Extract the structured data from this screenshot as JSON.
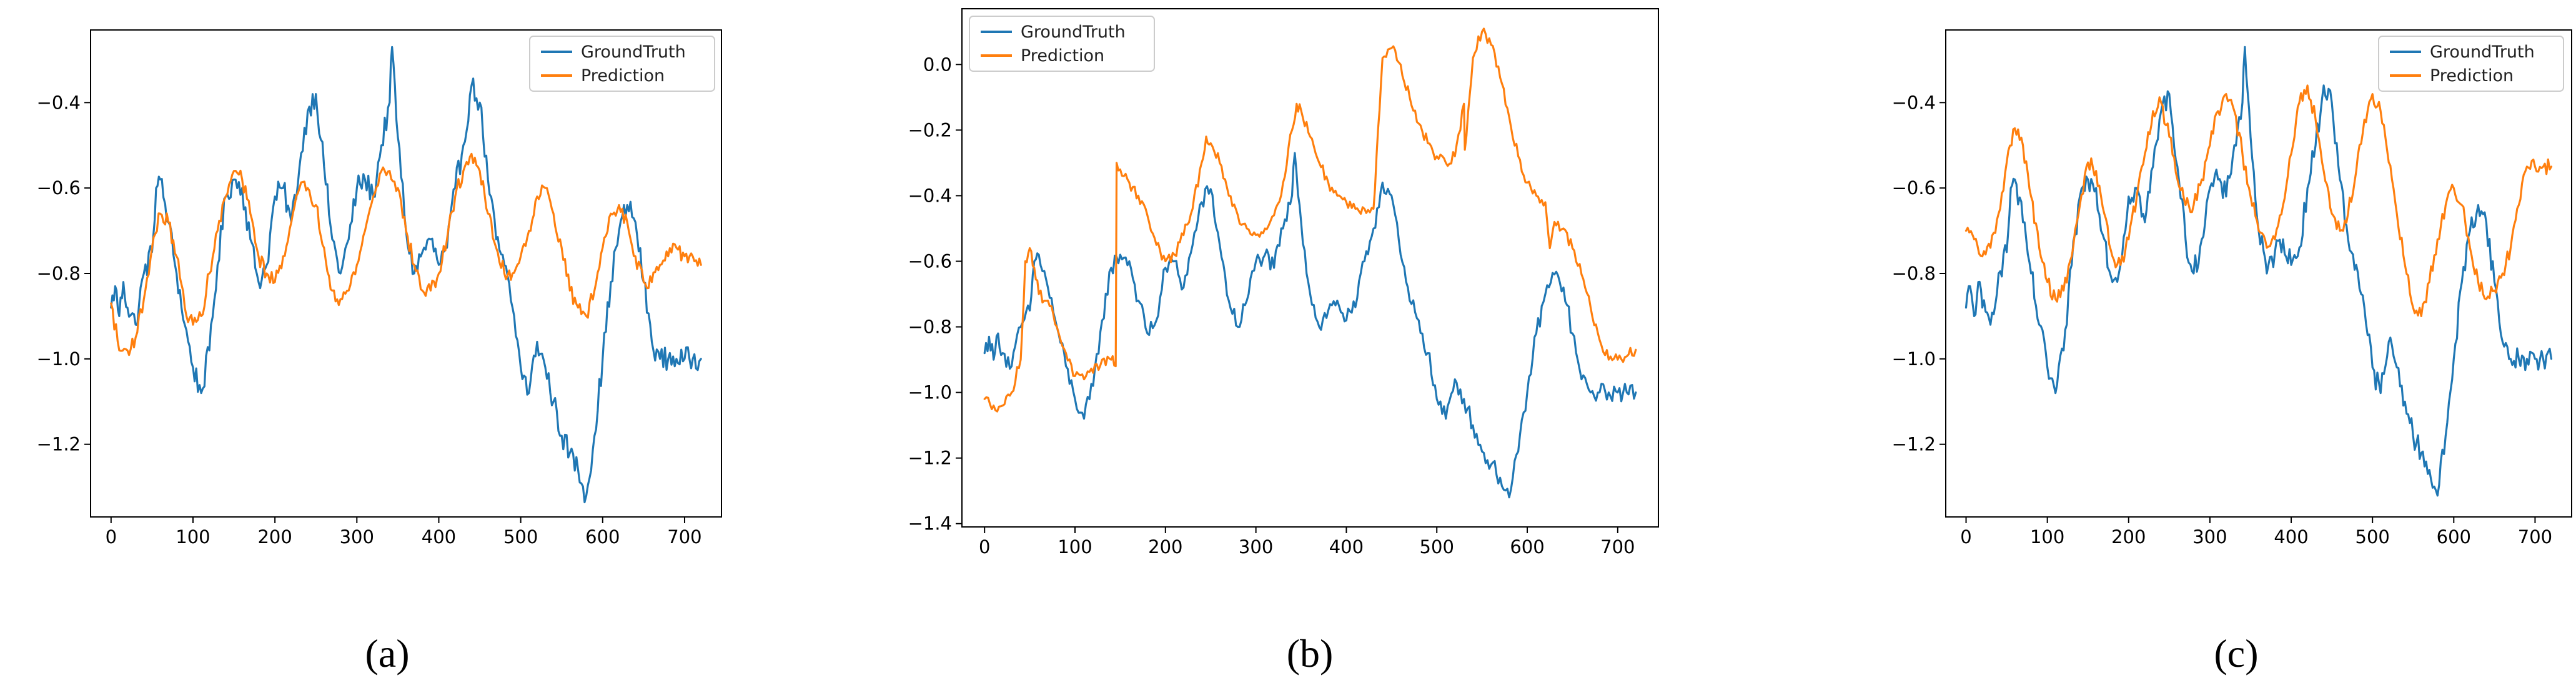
{
  "colors": {
    "ground_truth": "#1f77b4",
    "prediction": "#ff7f0e"
  },
  "captions": [
    "(a)",
    "(b)",
    "(c)"
  ],
  "legend_labels": [
    "GroundTruth",
    "Prediction"
  ],
  "chart_data": [
    {
      "panel": "a",
      "type": "line",
      "legend": "top-right",
      "x_ticks": [
        "0",
        "100",
        "200",
        "300",
        "400",
        "500",
        "600",
        "700"
      ],
      "y_ticks": [
        "-1.2",
        "-1.0",
        "-0.8",
        "-0.6",
        "-0.4"
      ],
      "xlim": [
        -25,
        745
      ],
      "ylim": [
        -1.37,
        -0.23
      ],
      "series": [
        {
          "name": "GroundTruth",
          "x": [
            0,
            5,
            10,
            15,
            20,
            30,
            40,
            50,
            55,
            60,
            70,
            80,
            90,
            100,
            110,
            120,
            130,
            140,
            150,
            160,
            170,
            180,
            190,
            200,
            210,
            220,
            230,
            240,
            250,
            260,
            270,
            280,
            290,
            300,
            310,
            320,
            330,
            340,
            343,
            350,
            360,
            370,
            380,
            390,
            400,
            410,
            420,
            430,
            440,
            450,
            460,
            470,
            480,
            490,
            500,
            510,
            520,
            530,
            540,
            550,
            560,
            570,
            580,
            590,
            600,
            610,
            620,
            630,
            640,
            650,
            660,
            670,
            680,
            690,
            700,
            710,
            720
          ],
          "y": [
            -0.88,
            -0.83,
            -0.9,
            -0.82,
            -0.88,
            -0.92,
            -0.8,
            -0.75,
            -0.6,
            -0.58,
            -0.68,
            -0.8,
            -0.92,
            -1.02,
            -1.08,
            -0.98,
            -0.78,
            -0.62,
            -0.58,
            -0.6,
            -0.72,
            -0.82,
            -0.78,
            -0.62,
            -0.6,
            -0.68,
            -0.55,
            -0.42,
            -0.38,
            -0.55,
            -0.72,
            -0.8,
            -0.72,
            -0.6,
            -0.58,
            -0.62,
            -0.5,
            -0.4,
            -0.27,
            -0.48,
            -0.7,
            -0.8,
            -0.75,
            -0.72,
            -0.78,
            -0.74,
            -0.6,
            -0.5,
            -0.36,
            -0.4,
            -0.58,
            -0.72,
            -0.78,
            -0.88,
            -1.02,
            -1.08,
            -0.96,
            -1.02,
            -1.1,
            -1.18,
            -1.22,
            -1.26,
            -1.32,
            -1.18,
            -1.0,
            -0.82,
            -0.7,
            -0.64,
            -0.68,
            -0.82,
            -0.96,
            -1.0,
            -1.0,
            -1.0,
            -1.0,
            -1.0,
            -1.0
          ]
        },
        {
          "name": "Prediction",
          "x": [
            0,
            10,
            20,
            30,
            40,
            50,
            60,
            70,
            80,
            90,
            100,
            110,
            120,
            130,
            140,
            150,
            160,
            170,
            180,
            190,
            200,
            210,
            220,
            230,
            240,
            250,
            260,
            270,
            280,
            290,
            300,
            310,
            320,
            330,
            340,
            350,
            360,
            370,
            380,
            390,
            400,
            410,
            420,
            430,
            440,
            450,
            460,
            470,
            480,
            490,
            500,
            510,
            520,
            530,
            540,
            550,
            560,
            570,
            580,
            590,
            600,
            610,
            620,
            630,
            640,
            650,
            660,
            670,
            680,
            690,
            700,
            710,
            720
          ],
          "y": [
            -0.87,
            -0.98,
            -0.98,
            -0.95,
            -0.86,
            -0.74,
            -0.66,
            -0.68,
            -0.76,
            -0.88,
            -0.92,
            -0.9,
            -0.8,
            -0.7,
            -0.62,
            -0.56,
            -0.58,
            -0.66,
            -0.76,
            -0.8,
            -0.82,
            -0.76,
            -0.68,
            -0.6,
            -0.6,
            -0.64,
            -0.74,
            -0.84,
            -0.86,
            -0.84,
            -0.78,
            -0.7,
            -0.62,
            -0.56,
            -0.56,
            -0.6,
            -0.7,
            -0.78,
            -0.84,
            -0.84,
            -0.8,
            -0.72,
            -0.62,
            -0.56,
            -0.52,
            -0.56,
            -0.66,
            -0.74,
            -0.8,
            -0.8,
            -0.76,
            -0.7,
            -0.62,
            -0.6,
            -0.66,
            -0.74,
            -0.84,
            -0.88,
            -0.9,
            -0.84,
            -0.74,
            -0.66,
            -0.64,
            -0.68,
            -0.76,
            -0.82,
            -0.82,
            -0.78,
            -0.76,
            -0.74,
            -0.76,
            -0.76,
            -0.78
          ]
        }
      ]
    },
    {
      "panel": "b",
      "type": "line",
      "legend": "top-left",
      "x_ticks": [
        "0",
        "100",
        "200",
        "300",
        "400",
        "500",
        "600",
        "700"
      ],
      "y_ticks": [
        "-1.4",
        "-1.2",
        "-1.0",
        "-0.8",
        "-0.6",
        "-0.4",
        "-0.2",
        "0.0"
      ],
      "xlim": [
        -25,
        745
      ],
      "ylim": [
        -1.41,
        0.17
      ],
      "series": [
        {
          "name": "GroundTruth",
          "x": [
            0,
            5,
            10,
            15,
            20,
            30,
            40,
            50,
            55,
            60,
            70,
            80,
            90,
            100,
            110,
            120,
            130,
            140,
            150,
            160,
            170,
            180,
            190,
            200,
            210,
            220,
            230,
            240,
            250,
            260,
            270,
            280,
            290,
            300,
            310,
            320,
            330,
            340,
            343,
            350,
            360,
            370,
            380,
            390,
            400,
            410,
            420,
            430,
            440,
            450,
            460,
            470,
            480,
            490,
            500,
            510,
            520,
            530,
            540,
            550,
            560,
            570,
            580,
            590,
            600,
            610,
            620,
            630,
            640,
            650,
            660,
            670,
            680,
            690,
            700,
            710,
            720
          ],
          "y": [
            -0.88,
            -0.83,
            -0.9,
            -0.82,
            -0.88,
            -0.92,
            -0.8,
            -0.75,
            -0.6,
            -0.58,
            -0.68,
            -0.8,
            -0.92,
            -1.02,
            -1.08,
            -0.98,
            -0.78,
            -0.62,
            -0.58,
            -0.6,
            -0.72,
            -0.82,
            -0.78,
            -0.62,
            -0.6,
            -0.68,
            -0.55,
            -0.42,
            -0.38,
            -0.55,
            -0.72,
            -0.8,
            -0.72,
            -0.6,
            -0.58,
            -0.62,
            -0.5,
            -0.4,
            -0.27,
            -0.48,
            -0.7,
            -0.8,
            -0.75,
            -0.72,
            -0.78,
            -0.74,
            -0.6,
            -0.5,
            -0.36,
            -0.4,
            -0.58,
            -0.72,
            -0.78,
            -0.88,
            -1.02,
            -1.08,
            -0.96,
            -1.02,
            -1.1,
            -1.18,
            -1.22,
            -1.26,
            -1.32,
            -1.18,
            -1.0,
            -0.82,
            -0.7,
            -0.64,
            -0.68,
            -0.82,
            -0.96,
            -1.0,
            -1.0,
            -1.0,
            -1.0,
            -1.0,
            -1.0
          ]
        },
        {
          "name": "Prediction",
          "x": [
            0,
            10,
            20,
            30,
            40,
            45,
            50,
            55,
            60,
            70,
            80,
            90,
            100,
            110,
            120,
            130,
            140,
            145,
            146,
            150,
            160,
            170,
            180,
            190,
            200,
            210,
            220,
            230,
            240,
            245,
            250,
            260,
            270,
            280,
            290,
            300,
            310,
            320,
            330,
            340,
            345,
            350,
            360,
            370,
            380,
            390,
            400,
            410,
            420,
            430,
            435,
            440,
            450,
            460,
            470,
            480,
            490,
            500,
            510,
            520,
            530,
            531,
            540,
            550,
            560,
            570,
            580,
            590,
            600,
            610,
            620,
            625,
            630,
            640,
            650,
            660,
            670,
            680,
            690,
            700,
            710,
            720
          ],
          "y": [
            -1.02,
            -1.04,
            -1.04,
            -1.0,
            -0.9,
            -0.6,
            -0.56,
            -0.62,
            -0.7,
            -0.72,
            -0.8,
            -0.88,
            -0.95,
            -0.96,
            -0.94,
            -0.9,
            -0.9,
            -0.92,
            -0.3,
            -0.32,
            -0.36,
            -0.4,
            -0.46,
            -0.55,
            -0.6,
            -0.58,
            -0.52,
            -0.44,
            -0.3,
            -0.22,
            -0.24,
            -0.3,
            -0.4,
            -0.46,
            -0.5,
            -0.52,
            -0.5,
            -0.46,
            -0.36,
            -0.2,
            -0.12,
            -0.14,
            -0.22,
            -0.3,
            -0.36,
            -0.4,
            -0.42,
            -0.44,
            -0.44,
            -0.44,
            -0.2,
            0.02,
            0.05,
            0.0,
            -0.1,
            -0.18,
            -0.24,
            -0.28,
            -0.3,
            -0.28,
            -0.12,
            -0.26,
            0.02,
            0.1,
            0.06,
            -0.04,
            -0.16,
            -0.28,
            -0.36,
            -0.4,
            -0.42,
            -0.56,
            -0.48,
            -0.5,
            -0.56,
            -0.64,
            -0.74,
            -0.84,
            -0.9,
            -0.9,
            -0.89,
            -0.87
          ]
        }
      ]
    },
    {
      "panel": "c",
      "type": "line",
      "legend": "top-right",
      "x_ticks": [
        "0",
        "100",
        "200",
        "300",
        "400",
        "500",
        "600",
        "700"
      ],
      "y_ticks": [
        "-1.2",
        "-1.0",
        "-0.8",
        "-0.6",
        "-0.4"
      ],
      "xlim": [
        -25,
        745
      ],
      "ylim": [
        -1.37,
        -0.23
      ],
      "series": [
        {
          "name": "GroundTruth",
          "x": [
            0,
            5,
            10,
            15,
            20,
            30,
            40,
            50,
            55,
            60,
            70,
            80,
            90,
            100,
            110,
            120,
            130,
            140,
            150,
            160,
            170,
            180,
            190,
            200,
            210,
            220,
            230,
            240,
            250,
            260,
            270,
            280,
            290,
            300,
            310,
            320,
            330,
            340,
            343,
            350,
            360,
            370,
            380,
            390,
            400,
            410,
            420,
            430,
            440,
            450,
            460,
            470,
            480,
            490,
            500,
            510,
            520,
            530,
            540,
            550,
            560,
            570,
            580,
            590,
            600,
            610,
            620,
            630,
            640,
            650,
            660,
            670,
            680,
            690,
            700,
            710,
            720
          ],
          "y": [
            -0.88,
            -0.83,
            -0.9,
            -0.82,
            -0.88,
            -0.92,
            -0.8,
            -0.75,
            -0.6,
            -0.58,
            -0.68,
            -0.8,
            -0.92,
            -1.02,
            -1.08,
            -0.98,
            -0.78,
            -0.62,
            -0.58,
            -0.6,
            -0.72,
            -0.82,
            -0.78,
            -0.62,
            -0.6,
            -0.68,
            -0.55,
            -0.42,
            -0.38,
            -0.55,
            -0.72,
            -0.8,
            -0.72,
            -0.6,
            -0.58,
            -0.62,
            -0.5,
            -0.4,
            -0.27,
            -0.48,
            -0.7,
            -0.8,
            -0.75,
            -0.72,
            -0.78,
            -0.74,
            -0.6,
            -0.5,
            -0.36,
            -0.4,
            -0.58,
            -0.72,
            -0.78,
            -0.88,
            -1.02,
            -1.08,
            -0.96,
            -1.02,
            -1.1,
            -1.18,
            -1.22,
            -1.26,
            -1.32,
            -1.18,
            -1.0,
            -0.82,
            -0.7,
            -0.64,
            -0.68,
            -0.82,
            -0.96,
            -1.0,
            -1.0,
            -1.0,
            -1.0,
            -1.0,
            -1.0
          ]
        },
        {
          "name": "Prediction",
          "x": [
            0,
            10,
            20,
            30,
            40,
            50,
            60,
            70,
            80,
            90,
            100,
            110,
            120,
            130,
            140,
            150,
            160,
            170,
            180,
            190,
            200,
            210,
            220,
            230,
            240,
            250,
            260,
            270,
            280,
            290,
            300,
            310,
            320,
            330,
            340,
            350,
            360,
            370,
            380,
            390,
            400,
            410,
            420,
            430,
            440,
            450,
            460,
            470,
            480,
            490,
            500,
            510,
            520,
            530,
            540,
            550,
            560,
            570,
            580,
            590,
            600,
            610,
            620,
            630,
            640,
            650,
            660,
            670,
            680,
            690,
            700,
            710,
            720
          ],
          "y": [
            -0.7,
            -0.72,
            -0.76,
            -0.74,
            -0.66,
            -0.54,
            -0.46,
            -0.5,
            -0.62,
            -0.74,
            -0.82,
            -0.86,
            -0.84,
            -0.76,
            -0.64,
            -0.54,
            -0.56,
            -0.66,
            -0.76,
            -0.78,
            -0.72,
            -0.62,
            -0.52,
            -0.42,
            -0.4,
            -0.48,
            -0.58,
            -0.64,
            -0.64,
            -0.58,
            -0.5,
            -0.42,
            -0.38,
            -0.42,
            -0.52,
            -0.62,
            -0.7,
            -0.74,
            -0.72,
            -0.64,
            -0.52,
            -0.4,
            -0.36,
            -0.44,
            -0.56,
            -0.66,
            -0.7,
            -0.66,
            -0.56,
            -0.44,
            -0.38,
            -0.42,
            -0.54,
            -0.66,
            -0.78,
            -0.88,
            -0.9,
            -0.82,
            -0.72,
            -0.64,
            -0.6,
            -0.64,
            -0.74,
            -0.82,
            -0.86,
            -0.84,
            -0.8,
            -0.74,
            -0.64,
            -0.55,
            -0.55,
            -0.55,
            -0.55
          ]
        }
      ]
    }
  ]
}
